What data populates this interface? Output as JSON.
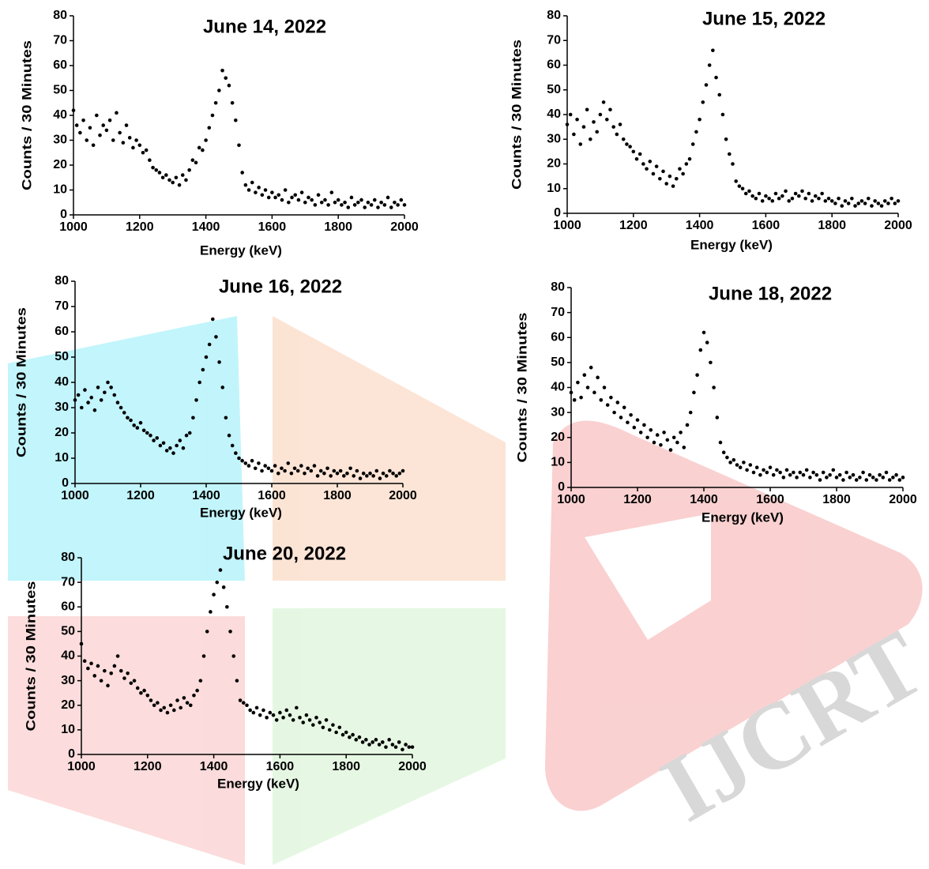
{
  "watermark": "IJCRT",
  "chart_data": [
    {
      "type": "scatter",
      "title": "June 14, 2022",
      "x_label": "Energy (keV)",
      "y_label": "Counts / 30 Minutes",
      "color": "#000000",
      "xlim": [
        1000,
        2000
      ],
      "ylim": [
        0,
        80
      ],
      "xticks": [
        1000,
        1200,
        1400,
        1600,
        1800,
        2000
      ],
      "yticks": [
        0,
        10,
        20,
        30,
        40,
        50,
        60,
        70,
        80
      ],
      "grid": false,
      "x": [
        1000,
        1010,
        1020,
        1030,
        1040,
        1050,
        1060,
        1070,
        1080,
        1090,
        1100,
        1110,
        1120,
        1130,
        1140,
        1150,
        1160,
        1170,
        1180,
        1190,
        1200,
        1210,
        1220,
        1230,
        1240,
        1250,
        1260,
        1270,
        1280,
        1290,
        1300,
        1310,
        1320,
        1330,
        1340,
        1350,
        1360,
        1370,
        1380,
        1390,
        1400,
        1410,
        1420,
        1430,
        1440,
        1450,
        1460,
        1470,
        1480,
        1490,
        1500,
        1510,
        1520,
        1530,
        1540,
        1550,
        1560,
        1570,
        1580,
        1590,
        1600,
        1610,
        1620,
        1630,
        1640,
        1650,
        1660,
        1670,
        1680,
        1690,
        1700,
        1710,
        1720,
        1730,
        1740,
        1750,
        1760,
        1770,
        1780,
        1790,
        1800,
        1810,
        1820,
        1830,
        1840,
        1850,
        1860,
        1870,
        1880,
        1890,
        1900,
        1910,
        1920,
        1930,
        1940,
        1950,
        1960,
        1970,
        1980,
        1990,
        2000
      ],
      "values": [
        42,
        36,
        33,
        38,
        30,
        35,
        28,
        40,
        32,
        36,
        34,
        38,
        30,
        41,
        33,
        29,
        36,
        31,
        27,
        30,
        28,
        25,
        26,
        22,
        19,
        18,
        17,
        15,
        16,
        14,
        13,
        15,
        12,
        16,
        14,
        18,
        22,
        21,
        27,
        26,
        30,
        35,
        40,
        45,
        50,
        58,
        55,
        52,
        45,
        38,
        28,
        17,
        12,
        10,
        13,
        9,
        11,
        8,
        10,
        7,
        9,
        7,
        8,
        6,
        10,
        5,
        7,
        8,
        6,
        9,
        5,
        7,
        6,
        4,
        8,
        5,
        6,
        4,
        9,
        5,
        6,
        4,
        5,
        3,
        7,
        4,
        5,
        6,
        3,
        5,
        4,
        6,
        3,
        5,
        4,
        7,
        3,
        5,
        4,
        6,
        4
      ]
    },
    {
      "type": "scatter",
      "title": "June 15, 2022",
      "x_label": "Energy (keV)",
      "y_label": "Counts / 30 Minutes",
      "color": "#000000",
      "xlim": [
        1000,
        2000
      ],
      "ylim": [
        0,
        80
      ],
      "xticks": [
        1000,
        1200,
        1400,
        1600,
        1800,
        2000
      ],
      "yticks": [
        0,
        10,
        20,
        30,
        40,
        50,
        60,
        70,
        80
      ],
      "grid": false,
      "x": [
        1000,
        1010,
        1020,
        1030,
        1040,
        1050,
        1060,
        1070,
        1080,
        1090,
        1100,
        1110,
        1120,
        1130,
        1140,
        1150,
        1160,
        1170,
        1180,
        1190,
        1200,
        1210,
        1220,
        1230,
        1240,
        1250,
        1260,
        1270,
        1280,
        1290,
        1300,
        1310,
        1320,
        1330,
        1340,
        1350,
        1360,
        1370,
        1380,
        1390,
        1400,
        1410,
        1420,
        1430,
        1440,
        1450,
        1460,
        1470,
        1480,
        1490,
        1500,
        1510,
        1520,
        1530,
        1540,
        1550,
        1560,
        1570,
        1580,
        1590,
        1600,
        1610,
        1620,
        1630,
        1640,
        1650,
        1660,
        1670,
        1680,
        1690,
        1700,
        1710,
        1720,
        1730,
        1740,
        1750,
        1760,
        1770,
        1780,
        1790,
        1800,
        1810,
        1820,
        1830,
        1840,
        1850,
        1860,
        1870,
        1880,
        1890,
        1900,
        1910,
        1920,
        1930,
        1940,
        1950,
        1960,
        1970,
        1980,
        1990,
        2000
      ],
      "values": [
        36,
        40,
        32,
        38,
        28,
        35,
        42,
        30,
        37,
        33,
        40,
        45,
        38,
        42,
        35,
        32,
        36,
        30,
        28,
        27,
        25,
        22,
        24,
        20,
        18,
        21,
        16,
        19,
        14,
        17,
        12,
        15,
        11,
        14,
        18,
        16,
        20,
        22,
        28,
        33,
        38,
        45,
        52,
        60,
        66,
        55,
        48,
        40,
        30,
        24,
        20,
        13,
        11,
        10,
        8,
        9,
        7,
        6,
        8,
        5,
        7,
        6,
        5,
        8,
        6,
        7,
        9,
        5,
        6,
        8,
        7,
        9,
        6,
        8,
        5,
        7,
        6,
        8,
        5,
        6,
        5,
        4,
        6,
        3,
        5,
        4,
        6,
        3,
        4,
        5,
        4,
        6,
        3,
        5,
        4,
        3,
        5,
        4,
        6,
        4,
        5
      ]
    },
    {
      "type": "scatter",
      "title": "June 16, 2022",
      "x_label": "Energy (keV)",
      "y_label": "Counts / 30 Minutes",
      "color": "#000000",
      "xlim": [
        1000,
        2000
      ],
      "ylim": [
        0,
        80
      ],
      "xticks": [
        1000,
        1200,
        1400,
        1600,
        1800,
        2000
      ],
      "yticks": [
        0,
        10,
        20,
        30,
        40,
        50,
        60,
        70,
        80
      ],
      "grid": false,
      "x": [
        1000,
        1010,
        1020,
        1030,
        1040,
        1050,
        1060,
        1070,
        1080,
        1090,
        1100,
        1110,
        1120,
        1130,
        1140,
        1150,
        1160,
        1170,
        1180,
        1190,
        1200,
        1210,
        1220,
        1230,
        1240,
        1250,
        1260,
        1270,
        1280,
        1290,
        1300,
        1310,
        1320,
        1330,
        1340,
        1350,
        1360,
        1370,
        1380,
        1390,
        1400,
        1410,
        1420,
        1430,
        1440,
        1450,
        1460,
        1470,
        1480,
        1490,
        1500,
        1510,
        1520,
        1530,
        1540,
        1550,
        1560,
        1570,
        1580,
        1590,
        1600,
        1610,
        1620,
        1630,
        1640,
        1650,
        1660,
        1670,
        1680,
        1690,
        1700,
        1710,
        1720,
        1730,
        1740,
        1750,
        1760,
        1770,
        1780,
        1790,
        1800,
        1810,
        1820,
        1830,
        1840,
        1850,
        1860,
        1870,
        1880,
        1890,
        1900,
        1910,
        1920,
        1930,
        1940,
        1950,
        1960,
        1970,
        1980,
        1990,
        2000
      ],
      "values": [
        33,
        35,
        30,
        37,
        32,
        34,
        29,
        38,
        33,
        36,
        40,
        38,
        35,
        32,
        30,
        28,
        26,
        25,
        23,
        22,
        24,
        21,
        20,
        19,
        17,
        18,
        15,
        16,
        13,
        14,
        12,
        15,
        17,
        14,
        19,
        20,
        26,
        33,
        40,
        45,
        50,
        55,
        65,
        58,
        48,
        38,
        26,
        19,
        15,
        12,
        10,
        9,
        8,
        7,
        9,
        6,
        8,
        5,
        7,
        6,
        5,
        7,
        4,
        6,
        5,
        8,
        4,
        6,
        5,
        7,
        4,
        6,
        5,
        7,
        3,
        5,
        4,
        6,
        3,
        5,
        4,
        5,
        3,
        4,
        6,
        3,
        5,
        2,
        4,
        3,
        4,
        3,
        5,
        2,
        4,
        3,
        5,
        4,
        3,
        4,
        5
      ]
    },
    {
      "type": "scatter",
      "title": "June 18, 2022",
      "x_label": "Energy (keV)",
      "y_label": "Counts / 30 Minutes",
      "color": "#000000",
      "xlim": [
        1000,
        2000
      ],
      "ylim": [
        0,
        80
      ],
      "xticks": [
        1000,
        1200,
        1400,
        1600,
        1800,
        2000
      ],
      "yticks": [
        0,
        10,
        20,
        30,
        40,
        50,
        60,
        70,
        80
      ],
      "grid": false,
      "x": [
        1000,
        1010,
        1020,
        1030,
        1040,
        1050,
        1060,
        1070,
        1080,
        1090,
        1100,
        1110,
        1120,
        1130,
        1140,
        1150,
        1160,
        1170,
        1180,
        1190,
        1200,
        1210,
        1220,
        1230,
        1240,
        1250,
        1260,
        1270,
        1280,
        1290,
        1300,
        1310,
        1320,
        1330,
        1340,
        1350,
        1360,
        1370,
        1380,
        1390,
        1400,
        1410,
        1420,
        1430,
        1440,
        1450,
        1460,
        1470,
        1480,
        1490,
        1500,
        1510,
        1520,
        1530,
        1540,
        1550,
        1560,
        1570,
        1580,
        1590,
        1600,
        1610,
        1620,
        1630,
        1640,
        1650,
        1660,
        1670,
        1680,
        1690,
        1700,
        1710,
        1720,
        1730,
        1740,
        1750,
        1760,
        1770,
        1780,
        1790,
        1800,
        1810,
        1820,
        1830,
        1840,
        1850,
        1860,
        1870,
        1880,
        1890,
        1900,
        1910,
        1920,
        1930,
        1940,
        1950,
        1960,
        1970,
        1980,
        1990,
        2000
      ],
      "values": [
        38,
        35,
        42,
        36,
        45,
        40,
        48,
        38,
        44,
        35,
        40,
        33,
        36,
        30,
        34,
        28,
        32,
        26,
        29,
        24,
        27,
        22,
        25,
        20,
        23,
        18,
        21,
        17,
        22,
        19,
        15,
        20,
        18,
        22,
        16,
        25,
        30,
        38,
        45,
        55,
        62,
        58,
        50,
        40,
        28,
        18,
        14,
        12,
        10,
        11,
        9,
        8,
        10,
        7,
        9,
        6,
        8,
        5,
        7,
        6,
        8,
        5,
        7,
        6,
        4,
        7,
        5,
        6,
        4,
        6,
        5,
        7,
        4,
        6,
        5,
        3,
        6,
        4,
        5,
        7,
        4,
        5,
        3,
        6,
        4,
        5,
        3,
        4,
        6,
        3,
        5,
        4,
        3,
        5,
        4,
        6,
        3,
        4,
        5,
        3,
        4
      ]
    },
    {
      "type": "scatter",
      "title": "June 20, 2022",
      "x_label": "Energy (keV)",
      "y_label": "Counts / 30 Minutes",
      "color": "#000000",
      "xlim": [
        1000,
        2000
      ],
      "ylim": [
        0,
        80
      ],
      "xticks": [
        1000,
        1200,
        1400,
        1600,
        1800,
        2000
      ],
      "yticks": [
        0,
        10,
        20,
        30,
        40,
        50,
        60,
        70,
        80
      ],
      "grid": false,
      "x": [
        1000,
        1010,
        1020,
        1030,
        1040,
        1050,
        1060,
        1070,
        1080,
        1090,
        1100,
        1110,
        1120,
        1130,
        1140,
        1150,
        1160,
        1170,
        1180,
        1190,
        1200,
        1210,
        1220,
        1230,
        1240,
        1250,
        1260,
        1270,
        1280,
        1290,
        1300,
        1310,
        1320,
        1330,
        1340,
        1350,
        1360,
        1370,
        1380,
        1390,
        1400,
        1410,
        1420,
        1430,
        1440,
        1450,
        1460,
        1470,
        1480,
        1490,
        1500,
        1510,
        1520,
        1530,
        1540,
        1550,
        1560,
        1570,
        1580,
        1590,
        1600,
        1610,
        1620,
        1630,
        1640,
        1650,
        1660,
        1670,
        1680,
        1690,
        1700,
        1710,
        1720,
        1730,
        1740,
        1750,
        1760,
        1770,
        1780,
        1790,
        1800,
        1810,
        1820,
        1830,
        1840,
        1850,
        1860,
        1870,
        1880,
        1890,
        1900,
        1910,
        1920,
        1930,
        1940,
        1950,
        1960,
        1970,
        1980,
        1990,
        2000
      ],
      "values": [
        45,
        38,
        35,
        37,
        32,
        36,
        30,
        34,
        28,
        33,
        36,
        40,
        34,
        31,
        33,
        29,
        30,
        27,
        25,
        26,
        24,
        22,
        20,
        21,
        18,
        19,
        17,
        20,
        18,
        22,
        19,
        23,
        21,
        20,
        24,
        26,
        30,
        40,
        50,
        58,
        65,
        70,
        75,
        68,
        60,
        50,
        40,
        30,
        22,
        21,
        20,
        18,
        17,
        19,
        16,
        18,
        15,
        17,
        16,
        14,
        17,
        15,
        18,
        16,
        14,
        19,
        15,
        13,
        16,
        14,
        12,
        15,
        13,
        11,
        14,
        10,
        12,
        9,
        11,
        8,
        9,
        7,
        8,
        6,
        7,
        5,
        6,
        4,
        5,
        6,
        4,
        5,
        3,
        6,
        4,
        3,
        5,
        2,
        4,
        3,
        3
      ]
    }
  ]
}
